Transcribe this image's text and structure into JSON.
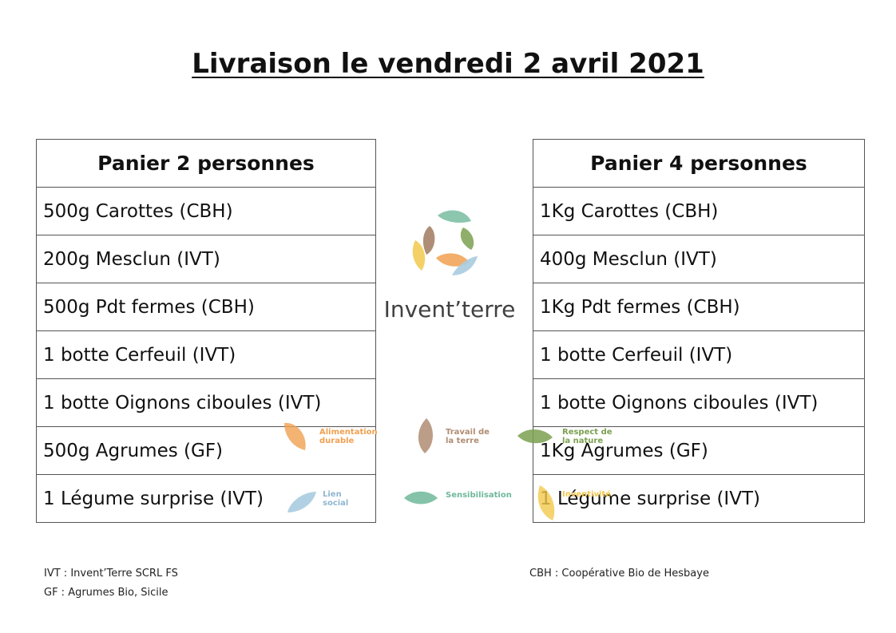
{
  "title": "Livraison le vendredi 2 avril 2021",
  "basket_2": {
    "header": "Panier 2 personnes",
    "items": [
      "500g Carottes (CBH)",
      "200g Mesclun (IVT)",
      "500g Pdt fermes (CBH)",
      "1 botte Cerfeuil (IVT)",
      "1 botte Oignons ciboules (IVT)",
      "500g Agrumes (GF)",
      "1 Légume surprise (IVT)"
    ]
  },
  "basket_4": {
    "header": "Panier 4 personnes",
    "items": [
      "1Kg Carottes (CBH)",
      "400g Mesclun (IVT)",
      "1Kg Pdt fermes (CBH)",
      "1 botte Cerfeuil (IVT)",
      "1 botte Oignons ciboules (IVT)",
      "1Kg Agrumes (GF)",
      "1 Légume surprise (IVT)"
    ]
  },
  "logo": {
    "name": "Invent’terre"
  },
  "values": {
    "alimentation": "Alimentation durable",
    "travail": "Travail de la terre",
    "respect": "Respect de la nature",
    "lien": "Lien social",
    "sensibilisation": "Sensibilisation",
    "inventivite": "Inventivité"
  },
  "colors": {
    "orange": "#f0a050",
    "brown": "#b08c72",
    "green": "#7aa050",
    "teal": "#6fb89a",
    "blue": "#a8cce0",
    "yellow": "#f2c94c"
  },
  "legend": {
    "ivt": "IVT : Invent’Terre SCRL FS",
    "gf": "GF : Agrumes Bio, Sicile",
    "cbh": "CBH : Coopérative Bio de Hesbaye"
  }
}
